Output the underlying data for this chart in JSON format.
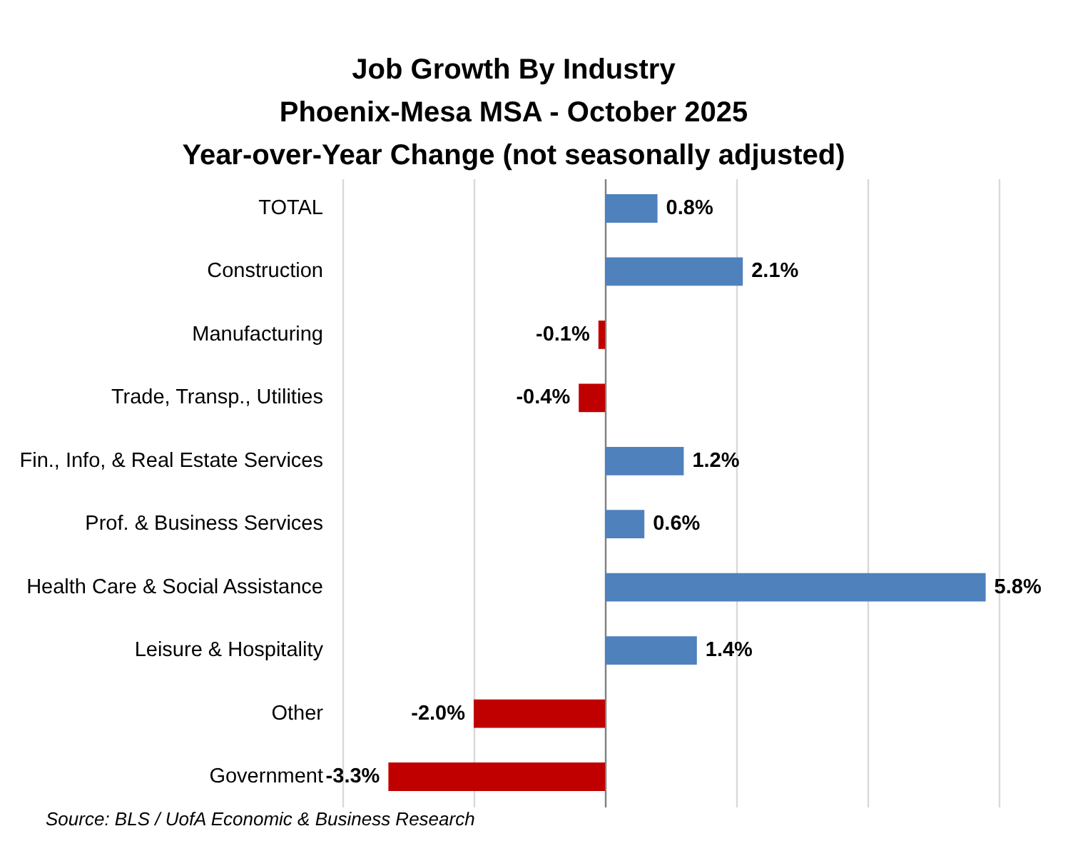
{
  "chart_data": {
    "type": "bar",
    "orientation": "horizontal",
    "title": "Job Growth By Industry\nPhoenix-Mesa MSA - October 2025\nYear-over-Year Change (not seasonally adjusted)",
    "categories": [
      "TOTAL",
      "Construction",
      "Manufacturing",
      "Trade, Transp., Utilities",
      "Fin., Info, & Real Estate Services",
      "Prof. & Business Services",
      "Health Care & Social Assistance",
      "Leisure & Hospitality",
      "Other",
      "Government"
    ],
    "values": [
      0.8,
      2.1,
      -0.1,
      -0.4,
      1.2,
      0.6,
      5.8,
      1.4,
      -2.0,
      -3.3
    ],
    "colors": [
      "#4f81bd",
      "#4f81bd",
      "#c00000",
      "#c00000",
      "#4f81bd",
      "#4f81bd",
      "#4f81bd",
      "#4f81bd",
      "#c00000",
      "#c00000"
    ],
    "value_labels": [
      "0.8%",
      "2.1%",
      "-0.1%",
      "-0.4%",
      "1.2%",
      "0.6%",
      "5.8%",
      "1.4%",
      "-2.0%",
      "-3.3%"
    ],
    "xlim": [
      -4,
      6
    ],
    "xticks": [
      {
        "value": -4,
        "label": null
      },
      {
        "value": -2,
        "label": null
      },
      {
        "value": 0,
        "label": null
      },
      {
        "value": 2,
        "label": null
      },
      {
        "value": 4,
        "label": null
      },
      {
        "value": 6,
        "label": null
      }
    ],
    "grid": "x",
    "tick_labels": "y",
    "annotations": [
      "Source: BLS / UofA Economic & Business Research"
    ]
  }
}
